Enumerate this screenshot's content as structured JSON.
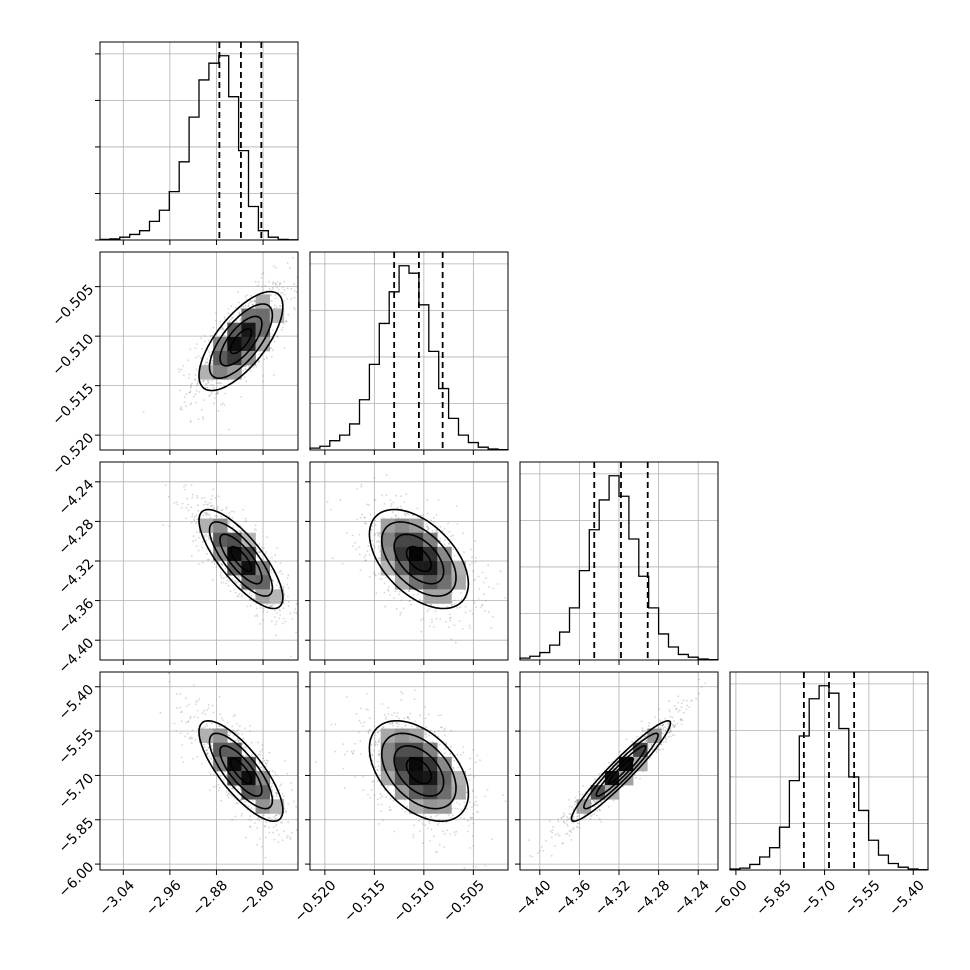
{
  "chart_data": {
    "type": "corner",
    "title": "",
    "parameters": [
      {
        "ticks": [
          -3.04,
          -2.96,
          -2.88,
          -2.8
        ],
        "tick_labels": [
          "−3.04",
          "−2.96",
          "−2.88",
          "−2.80"
        ],
        "range": [
          -3.08,
          -2.74
        ],
        "mean": -2.838,
        "sd": 0.036,
        "quantiles": [
          -2.875,
          -2.838,
          -2.803
        ],
        "hist": [
          0.003,
          0.006,
          0.015,
          0.03,
          0.05,
          0.1,
          0.16,
          0.26,
          0.42,
          0.66,
          0.86,
          0.95,
          0.99,
          0.77,
          0.48,
          0.18,
          0.05,
          0.015,
          0.003,
          0.001
        ]
      },
      {
        "ticks": [
          -0.52,
          -0.515,
          -0.51,
          -0.505
        ],
        "tick_labels": [
          "−0.520",
          "−0.515",
          "−0.510",
          "−0.505"
        ],
        "range": [
          -0.5215,
          -0.5015
        ],
        "mean": -0.5105,
        "sd": 0.0025,
        "quantiles": [
          -0.513,
          -0.5105,
          -0.5081
        ],
        "hist": [
          0.01,
          0.02,
          0.05,
          0.08,
          0.14,
          0.27,
          0.46,
          0.68,
          0.85,
          0.99,
          0.95,
          0.78,
          0.53,
          0.33,
          0.17,
          0.08,
          0.04,
          0.015,
          0.005,
          0.002
        ]
      },
      {
        "ticks": [
          -4.4,
          -4.36,
          -4.32,
          -4.28,
          -4.24
        ],
        "tick_labels": [
          "−4.40",
          "−4.36",
          "−4.32",
          "−4.28",
          "−4.24"
        ],
        "range": [
          -4.42,
          -4.22
        ],
        "mean": -4.318,
        "sd": 0.025,
        "quantiles": [
          -4.345,
          -4.318,
          -4.291
        ],
        "hist": [
          0.01,
          0.02,
          0.04,
          0.08,
          0.15,
          0.28,
          0.48,
          0.7,
          0.86,
          0.99,
          0.88,
          0.65,
          0.45,
          0.28,
          0.14,
          0.07,
          0.03,
          0.015,
          0.005,
          0.002
        ]
      },
      {
        "ticks": [
          -6.0,
          -5.85,
          -5.7,
          -5.55,
          -5.4
        ],
        "tick_labels": [
          "−6.00",
          "−5.85",
          "−5.70",
          "−5.55",
          "−5.40"
        ],
        "range": [
          -6.02,
          -5.35
        ],
        "mean": -5.685,
        "sd": 0.085,
        "quantiles": [
          -5.77,
          -5.685,
          -5.6
        ],
        "hist": [
          0.005,
          0.01,
          0.03,
          0.07,
          0.12,
          0.23,
          0.48,
          0.72,
          0.92,
          0.99,
          0.95,
          0.76,
          0.5,
          0.32,
          0.16,
          0.08,
          0.035,
          0.015,
          0.005,
          0.002
        ]
      }
    ],
    "correlations": [
      [
        1.0,
        0.7,
        -0.78,
        -0.78
      ],
      [
        0.7,
        1.0,
        -0.5,
        -0.45
      ],
      [
        -0.78,
        -0.5,
        1.0,
        0.95
      ],
      [
        -0.78,
        -0.45,
        0.95,
        1.0
      ]
    ],
    "contour_levels_sigma": [
      0.5,
      1.0,
      1.5,
      2.0
    ],
    "grid": true
  }
}
